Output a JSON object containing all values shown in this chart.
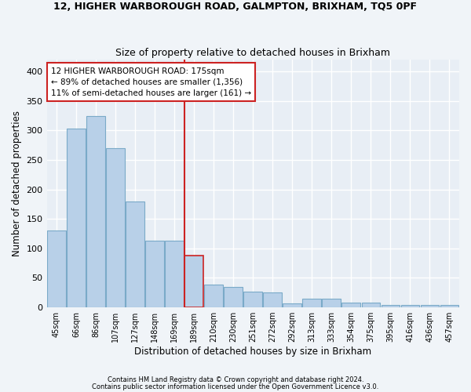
{
  "title1": "12, HIGHER WARBOROUGH ROAD, GALMPTON, BRIXHAM, TQ5 0PF",
  "title2": "Size of property relative to detached houses in Brixham",
  "xlabel": "Distribution of detached houses by size in Brixham",
  "ylabel": "Number of detached properties",
  "footnote1": "Contains HM Land Registry data © Crown copyright and database right 2024.",
  "footnote2": "Contains public sector information licensed under the Open Government Licence v3.0.",
  "annotation_line1": "12 HIGHER WARBOROUGH ROAD: 175sqm",
  "annotation_line2": "← 89% of detached houses are smaller (1,356)",
  "annotation_line3": "11% of semi-detached houses are larger (161) →",
  "bar_color": "#b8d0e8",
  "bar_edge_color": "#7aaac8",
  "highlight_bar_color": "#b8d0e8",
  "highlight_bar_edge_color": "#cc2222",
  "vline_color": "#cc2222",
  "categories": [
    "45sqm",
    "66sqm",
    "86sqm",
    "107sqm",
    "127sqm",
    "148sqm",
    "169sqm",
    "189sqm",
    "210sqm",
    "230sqm",
    "251sqm",
    "272sqm",
    "292sqm",
    "313sqm",
    "333sqm",
    "354sqm",
    "375sqm",
    "395sqm",
    "416sqm",
    "436sqm",
    "457sqm"
  ],
  "values": [
    130,
    303,
    325,
    270,
    180,
    113,
    113,
    88,
    38,
    35,
    27,
    25,
    7,
    15,
    15,
    8,
    8,
    4,
    4,
    4,
    4
  ],
  "highlight_index": 7,
  "vline_x_index": 7,
  "ylim": [
    0,
    420
  ],
  "yticks": [
    0,
    50,
    100,
    150,
    200,
    250,
    300,
    350,
    400
  ],
  "plot_bg_color": "#e8eef5",
  "fig_bg_color": "#f0f4f8",
  "grid_color": "#ffffff",
  "annotation_box_color": "white",
  "annotation_border_color": "#cc2222"
}
